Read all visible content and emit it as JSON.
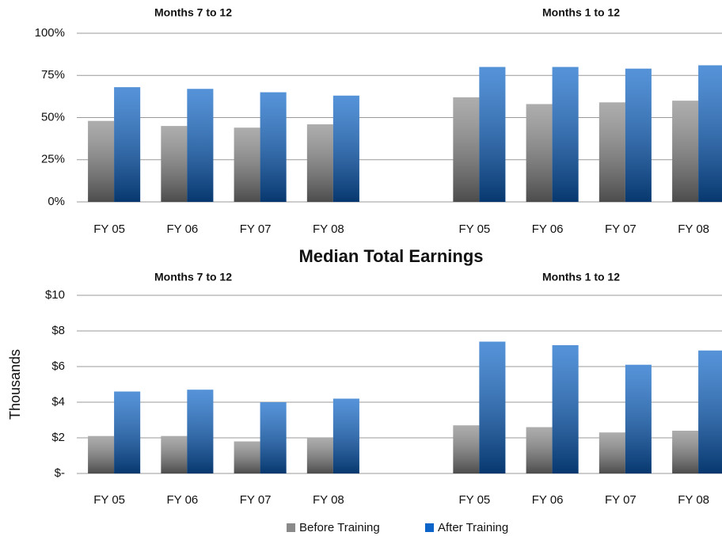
{
  "chart_data": [
    {
      "type": "bar",
      "categories": [
        "FY 05",
        "FY 06",
        "FY 07",
        "FY 08",
        null,
        "FY 05",
        "FY 06",
        "FY 07",
        "FY 08"
      ],
      "annotations": [
        "Months 7 to 12",
        "Months 1 to 12"
      ],
      "series": [
        {
          "color": "#8a8a8a",
          "values": [
            48,
            45,
            44,
            46,
            null,
            62,
            58,
            59,
            60
          ]
        },
        {
          "color": "#0c64c8",
          "values": [
            68,
            67,
            65,
            63,
            null,
            80,
            80,
            79,
            81
          ]
        }
      ],
      "ylim": [
        0,
        100
      ],
      "yticks": [
        {
          "value": 0,
          "label": "0%"
        },
        {
          "value": 25,
          "label": "25%"
        },
        {
          "value": 50,
          "label": "50%"
        },
        {
          "value": 75,
          "label": "75%"
        },
        {
          "value": 100,
          "label": "100%"
        }
      ],
      "grid": true
    },
    {
      "type": "bar",
      "title": "Median Total Earnings",
      "y_label": "Thousands",
      "categories": [
        "FY 05",
        "FY 06",
        "FY 07",
        "FY 08",
        null,
        "FY 05",
        "FY 06",
        "FY 07",
        "FY 08"
      ],
      "annotations": [
        "Months 7 to 12",
        "Months 1 to 12"
      ],
      "series": [
        {
          "name": "Before Training",
          "color": "#8a8a8a",
          "values": [
            2.1,
            2.1,
            1.8,
            2.0,
            null,
            2.7,
            2.6,
            2.3,
            2.4
          ]
        },
        {
          "name": "After Training",
          "color": "#0c64c8",
          "values": [
            4.6,
            4.7,
            4.0,
            4.2,
            null,
            7.4,
            7.2,
            6.1,
            6.9
          ]
        }
      ],
      "ylim": [
        0,
        10
      ],
      "yticks": [
        {
          "value": 0,
          "label": "$-"
        },
        {
          "value": 2,
          "label": "$2"
        },
        {
          "value": 4,
          "label": "$4"
        },
        {
          "value": 6,
          "label": "$6"
        },
        {
          "value": 8,
          "label": "$8"
        },
        {
          "value": 10,
          "label": "$10"
        }
      ],
      "grid": true,
      "legend": "bottom"
    }
  ]
}
